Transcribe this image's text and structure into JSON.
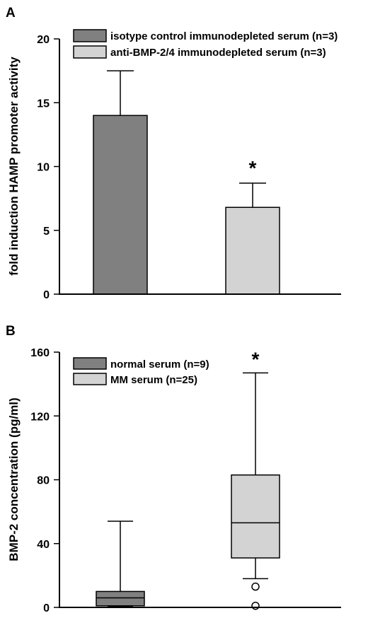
{
  "colors": {
    "dark_gray": "#808080",
    "light_gray": "#d3d3d3",
    "axis": "#000000",
    "outlier_fill": "#ffffff"
  },
  "chart_data": [
    {
      "panel_label": "A",
      "type": "bar",
      "categories": [
        "isotype control immunodepleted serum (n=3)",
        "anti-BMP-2/4 immunodepleted serum (n=3)"
      ],
      "values": [
        14,
        6.8
      ],
      "errors_upper": [
        3.5,
        1.9
      ],
      "ylabel": "fold induction HAMP promoter activity",
      "xlabel": "",
      "ylim": [
        0,
        20
      ],
      "yticks": [
        "0",
        "5",
        "10",
        "15",
        "20"
      ],
      "significance": [
        "",
        "*"
      ],
      "legend": {
        "position": "top",
        "entries": [
          {
            "label": "isotype control immunodepleted serum (n=3)",
            "color": "#808080"
          },
          {
            "label": "anti-BMP-2/4 immunodepleted serum (n=3)",
            "color": "#d3d3d3"
          }
        ]
      }
    },
    {
      "panel_label": "B",
      "type": "box",
      "categories": [
        "normal serum (n=9)",
        "MM serum (n=25)"
      ],
      "boxes": [
        {
          "name": "normal serum (n=9)",
          "whisker_low": 0.5,
          "q1": 1,
          "median": 6,
          "q3": 10,
          "whisker_high": 54,
          "outliers": []
        },
        {
          "name": "MM serum (n=25)",
          "whisker_low": 18,
          "q1": 31,
          "median": 53,
          "q3": 83,
          "whisker_high": 147,
          "outliers": [
            13,
            1
          ]
        }
      ],
      "ylabel": "BMP-2 concentration (pg/ml)",
      "xlabel": "",
      "ylim": [
        0,
        160
      ],
      "yticks": [
        "0",
        "40",
        "80",
        "120",
        "160"
      ],
      "significance": [
        "",
        "*"
      ],
      "legend": {
        "position": "top-left",
        "entries": [
          {
            "label": "normal serum (n=9)",
            "color": "#808080"
          },
          {
            "label": "MM serum (n=25)",
            "color": "#d3d3d3"
          }
        ]
      }
    }
  ]
}
